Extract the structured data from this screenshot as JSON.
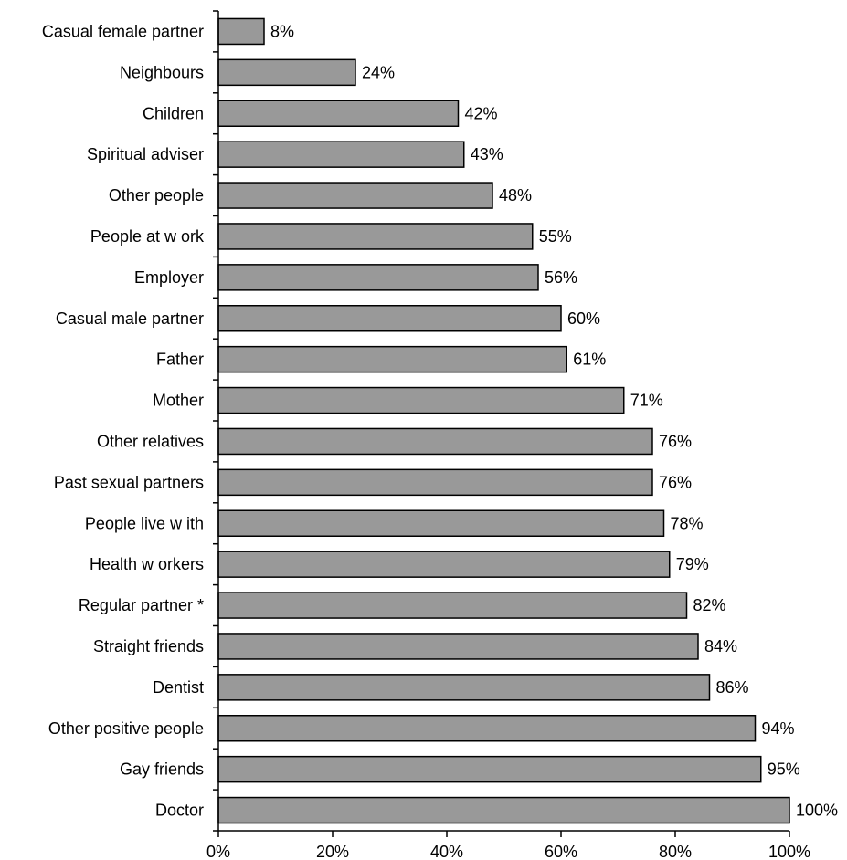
{
  "chart_data": {
    "type": "bar",
    "orientation": "horizontal",
    "categories": [
      "Casual female partner",
      "Neighbours",
      "Children",
      "Spiritual adviser",
      "Other people",
      "People at w ork",
      "Employer",
      "Casual male partner",
      "Father",
      "Mother",
      "Other relatives",
      "Past sexual partners",
      "People live w ith",
      "Health w orkers",
      "Regular partner *",
      "Straight friends",
      "Dentist",
      "Other positive people",
      "Gay friends",
      "Doctor"
    ],
    "values": [
      8,
      24,
      42,
      43,
      48,
      55,
      56,
      60,
      61,
      71,
      76,
      76,
      78,
      79,
      82,
      84,
      86,
      94,
      95,
      100
    ],
    "value_labels": [
      "8%",
      "24%",
      "42%",
      "43%",
      "48%",
      "55%",
      "56%",
      "60%",
      "61%",
      "71%",
      "76%",
      "76%",
      "78%",
      "79%",
      "82%",
      "84%",
      "86%",
      "94%",
      "95%",
      "100%"
    ],
    "xlim": [
      0,
      100
    ],
    "x_ticks": [
      0,
      20,
      40,
      60,
      80,
      100
    ],
    "x_tick_labels": [
      "0%",
      "20%",
      "40%",
      "60%",
      "80%",
      "100%"
    ],
    "title": "",
    "xlabel": "",
    "ylabel": "",
    "grid": false,
    "legend": "none",
    "bar_color": "#999999",
    "bar_edge_color": "#000000"
  }
}
